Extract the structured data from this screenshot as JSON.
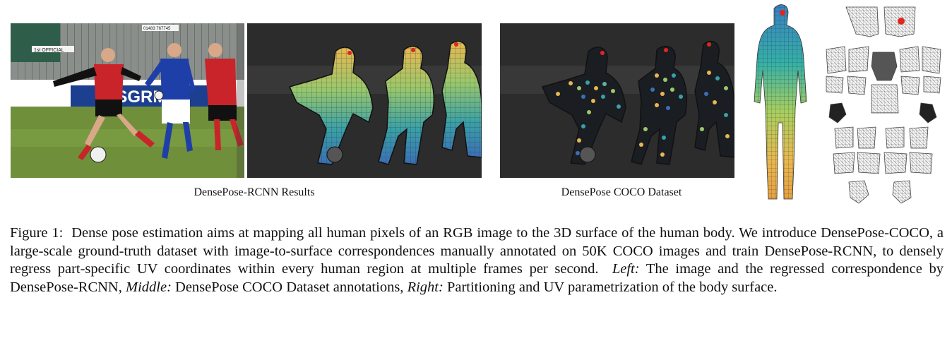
{
  "panels": {
    "photo": {
      "sign_official": "1st OFFICIAL",
      "sign_phone": "01483 767745",
      "board_text": "JESGRM"
    },
    "results_label": "DensePose-RCNN Results",
    "coco_label": "DensePose COCO Dataset"
  },
  "caption": {
    "figure_label": "Figure 1:",
    "text_1": "Dense pose estimation aims at mapping all human pixels of an RGB image to the 3D surface of the human body. We introduce DensePose-COCO, a large-scale ground-truth dataset with image-to-surface correspondences manually annotated on 50K COCO images and train DensePose-RCNN, to densely regress part-specific UV coordinates within every human region at multiple frames per second.",
    "left_label": "Left:",
    "left_text": "The image and the regressed correspondence by DensePose-RCNN,",
    "middle_label": "Middle:",
    "middle_text": "DensePose COCO Dataset annotations,",
    "right_label": "Right:",
    "right_text": "Partitioning and UV parametrization of the body surface."
  },
  "colors": {
    "grass": "#6f8f3a",
    "jersey_red": "#c8242a",
    "jersey_blue": "#1f3fa8",
    "dark_bg": "#2c2c2c",
    "mesh_gray": "#777777"
  }
}
